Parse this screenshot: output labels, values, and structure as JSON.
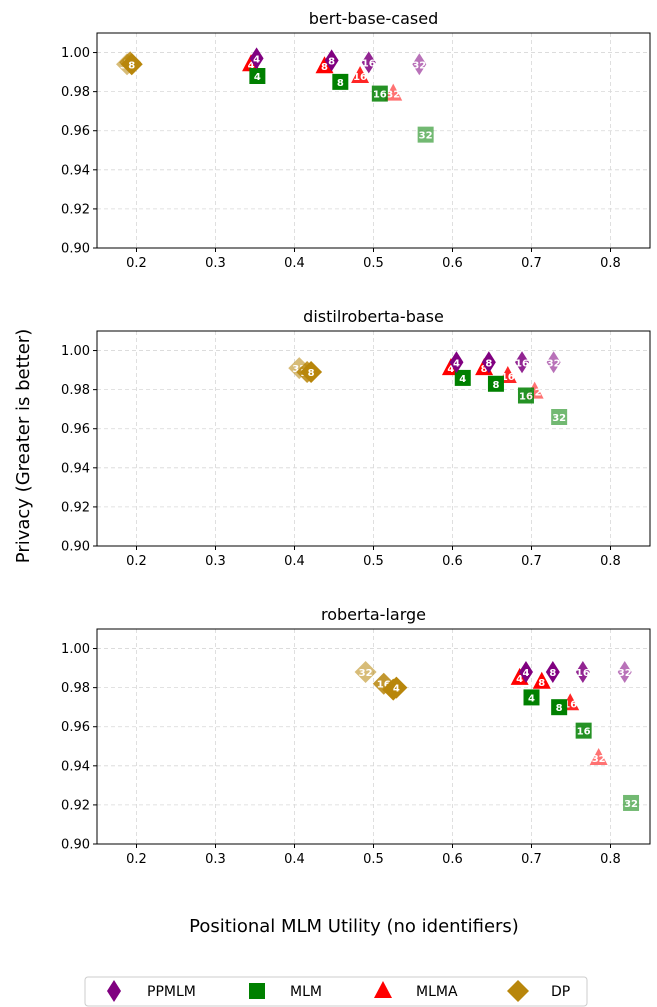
{
  "chart_data": {
    "type": "scatter",
    "ylabel": "Privacy (Greater is better)",
    "xlabel": "Positional MLM Utility (no identifiers)",
    "xlim": [
      0.15,
      0.85
    ],
    "ylim": [
      0.9,
      1.01
    ],
    "xticks": [
      0.2,
      0.3,
      0.4,
      0.5,
      0.6,
      0.7,
      0.8
    ],
    "yticks": [
      0.9,
      0.92,
      0.94,
      0.96,
      0.98,
      1.0
    ],
    "xtick_labels": [
      "0.2",
      "0.3",
      "0.4",
      "0.5",
      "0.6",
      "0.7",
      "0.8"
    ],
    "ytick_labels": [
      "0.90",
      "0.92",
      "0.94",
      "0.96",
      "0.98",
      "1.00"
    ],
    "grid": true,
    "legend": {
      "placement": "bottom",
      "entries": [
        {
          "name": "PPMLM",
          "marker": "diamond-thin",
          "color": "#800080"
        },
        {
          "name": "MLM",
          "marker": "square",
          "color": "#008000"
        },
        {
          "name": "MLMA",
          "marker": "triangle",
          "color": "#ff0000"
        },
        {
          "name": "DP",
          "marker": "diamond",
          "color": "#b8860b"
        }
      ]
    },
    "panels": [
      {
        "title": "bert-base-cased",
        "series": [
          {
            "name": "PPMLM",
            "points": [
              {
                "x": 0.352,
                "y": 0.997,
                "label": "4"
              },
              {
                "x": 0.447,
                "y": 0.996,
                "label": "8"
              },
              {
                "x": 0.494,
                "y": 0.995,
                "label": "16"
              },
              {
                "x": 0.558,
                "y": 0.994,
                "label": "32"
              }
            ]
          },
          {
            "name": "MLM",
            "points": [
              {
                "x": 0.353,
                "y": 0.988,
                "label": "4"
              },
              {
                "x": 0.458,
                "y": 0.985,
                "label": "8"
              },
              {
                "x": 0.508,
                "y": 0.979,
                "label": "16"
              },
              {
                "x": 0.566,
                "y": 0.958,
                "label": "32"
              }
            ]
          },
          {
            "name": "MLMA",
            "points": [
              {
                "x": 0.345,
                "y": 0.994,
                "label": "4"
              },
              {
                "x": 0.438,
                "y": 0.993,
                "label": "8"
              },
              {
                "x": 0.483,
                "y": 0.988,
                "label": "16"
              },
              {
                "x": 0.525,
                "y": 0.979,
                "label": "32"
              }
            ]
          },
          {
            "name": "DP",
            "points": [
              {
                "x": 0.188,
                "y": 0.994,
                "label": "32"
              },
              {
                "x": 0.192,
                "y": 0.995,
                "label": "16"
              },
              {
                "x": 0.194,
                "y": 0.994,
                "label": "8"
              }
            ]
          }
        ]
      },
      {
        "title": "distilroberta-base",
        "series": [
          {
            "name": "PPMLM",
            "points": [
              {
                "x": 0.605,
                "y": 0.994,
                "label": "4"
              },
              {
                "x": 0.646,
                "y": 0.994,
                "label": "8"
              },
              {
                "x": 0.688,
                "y": 0.994,
                "label": "16"
              },
              {
                "x": 0.728,
                "y": 0.994,
                "label": "32"
              }
            ]
          },
          {
            "name": "MLM",
            "points": [
              {
                "x": 0.613,
                "y": 0.986,
                "label": "4"
              },
              {
                "x": 0.655,
                "y": 0.983,
                "label": "8"
              },
              {
                "x": 0.693,
                "y": 0.977,
                "label": "16"
              },
              {
                "x": 0.735,
                "y": 0.966,
                "label": "32"
              }
            ]
          },
          {
            "name": "MLMA",
            "points": [
              {
                "x": 0.598,
                "y": 0.991,
                "label": "4"
              },
              {
                "x": 0.64,
                "y": 0.991,
                "label": "8"
              },
              {
                "x": 0.67,
                "y": 0.987,
                "label": "16"
              },
              {
                "x": 0.704,
                "y": 0.979,
                "label": "32"
              }
            ]
          },
          {
            "name": "DP",
            "points": [
              {
                "x": 0.406,
                "y": 0.991,
                "label": "32"
              },
              {
                "x": 0.416,
                "y": 0.989,
                "label": "16"
              },
              {
                "x": 0.421,
                "y": 0.989,
                "label": "8"
              }
            ]
          }
        ]
      },
      {
        "title": "roberta-large",
        "series": [
          {
            "name": "PPMLM",
            "points": [
              {
                "x": 0.693,
                "y": 0.988,
                "label": "4"
              },
              {
                "x": 0.727,
                "y": 0.988,
                "label": "8"
              },
              {
                "x": 0.765,
                "y": 0.988,
                "label": "16"
              },
              {
                "x": 0.818,
                "y": 0.988,
                "label": "32"
              }
            ]
          },
          {
            "name": "MLM",
            "points": [
              {
                "x": 0.7,
                "y": 0.975,
                "label": "4"
              },
              {
                "x": 0.735,
                "y": 0.97,
                "label": "8"
              },
              {
                "x": 0.766,
                "y": 0.958,
                "label": "16"
              },
              {
                "x": 0.826,
                "y": 0.921,
                "label": "32"
              }
            ]
          },
          {
            "name": "MLMA",
            "points": [
              {
                "x": 0.685,
                "y": 0.985,
                "label": "4"
              },
              {
                "x": 0.713,
                "y": 0.983,
                "label": "8"
              },
              {
                "x": 0.749,
                "y": 0.972,
                "label": "16"
              },
              {
                "x": 0.785,
                "y": 0.944,
                "label": "32"
              }
            ]
          },
          {
            "name": "DP",
            "points": [
              {
                "x": 0.49,
                "y": 0.988,
                "label": "32"
              },
              {
                "x": 0.513,
                "y": 0.982,
                "label": "16"
              },
              {
                "x": 0.525,
                "y": 0.979,
                "label": "8"
              },
              {
                "x": 0.529,
                "y": 0.98,
                "label": "4"
              }
            ]
          }
        ]
      }
    ]
  }
}
